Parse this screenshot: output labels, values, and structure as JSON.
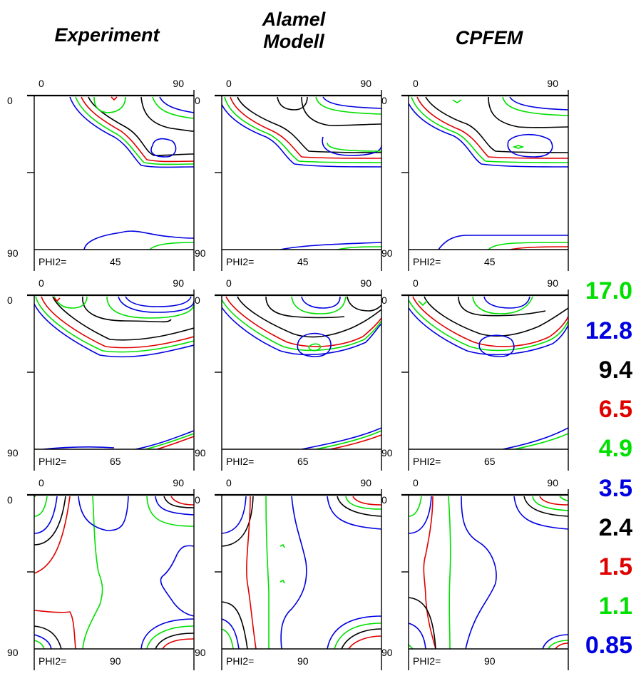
{
  "columns": [
    {
      "title_lines": [
        "Experiment"
      ]
    },
    {
      "title_lines": [
        "Alamel",
        "Modell"
      ]
    },
    {
      "title_lines": [
        "CPFEM"
      ]
    }
  ],
  "rows": [
    {
      "phi2_label": "PHI2=",
      "phi2_value": "45"
    },
    {
      "phi2_label": "PHI2=",
      "phi2_value": "65"
    },
    {
      "phi2_label": "PHI2=",
      "phi2_value": "90"
    }
  ],
  "axis": {
    "x_start": "0",
    "x_end": "90",
    "y_start": "0",
    "y_end": "90"
  },
  "legend": [
    {
      "value": "17.0",
      "color": "#00e000"
    },
    {
      "value": "12.8",
      "color": "#0000e0"
    },
    {
      "value": "9.4",
      "color": "#000000"
    },
    {
      "value": "6.5",
      "color": "#e00000"
    },
    {
      "value": "4.9",
      "color": "#00e000"
    },
    {
      "value": "3.5",
      "color": "#0000e0"
    },
    {
      "value": "2.4",
      "color": "#000000"
    },
    {
      "value": "1.5",
      "color": "#e00000"
    },
    {
      "value": "1.1",
      "color": "#00e000"
    },
    {
      "value": "0.85",
      "color": "#0000e0"
    }
  ]
}
